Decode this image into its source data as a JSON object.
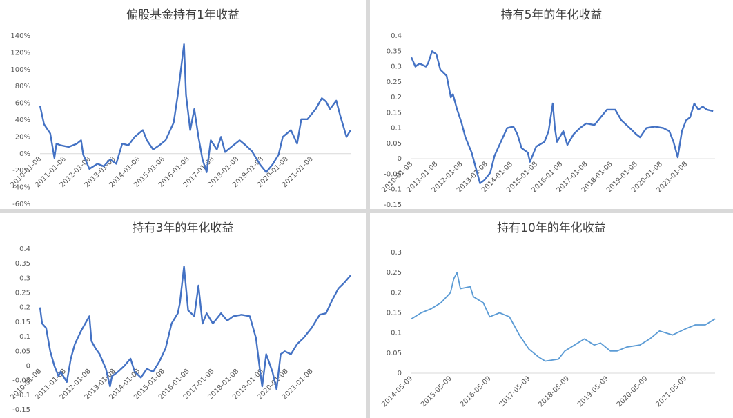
{
  "chart_data": [
    {
      "type": "line",
      "title": "偏股基金持有1年收益",
      "color": "#4472c4",
      "grid": false,
      "ylim": [
        -60,
        140
      ],
      "yticks": [
        {
          "value": -60,
          "label": "-60%"
        },
        {
          "value": -40,
          "label": "-40%"
        },
        {
          "value": -20,
          "label": "-20%"
        },
        {
          "value": 0,
          "label": "0%"
        },
        {
          "value": 20,
          "label": "20%"
        },
        {
          "value": 40,
          "label": "40%"
        },
        {
          "value": 60,
          "label": "60%"
        },
        {
          "value": 80,
          "label": "80%"
        },
        {
          "value": 100,
          "label": "100%"
        },
        {
          "value": 120,
          "label": "120%"
        },
        {
          "value": 140,
          "label": "140%"
        }
      ],
      "xlim": [
        "2010-01-08",
        "2022-08-08"
      ],
      "xticks": [
        "2010-01-08",
        "2011-01-08",
        "2012-01-08",
        "2013-01-08",
        "2014-01-08",
        "2015-01-08",
        "2016-01-08",
        "2017-01-08",
        "2018-01-08",
        "2019-01-08",
        "2020-01-08",
        "2021-01-08"
      ],
      "x": [
        "2010-01-08",
        "2010-03-08",
        "2010-06-08",
        "2010-08-08",
        "2010-09-08",
        "2010-11-08",
        "2011-03-08",
        "2011-07-08",
        "2011-09-08",
        "2011-10-08",
        "2012-01-08",
        "2012-05-08",
        "2012-08-08",
        "2012-11-08",
        "2013-02-08",
        "2013-05-08",
        "2013-08-08",
        "2013-11-08",
        "2014-03-08",
        "2014-05-08",
        "2014-08-08",
        "2014-11-08",
        "2015-02-08",
        "2015-06-08",
        "2015-08-08",
        "2015-11-08",
        "2015-12-08",
        "2016-02-08",
        "2016-04-08",
        "2016-06-08",
        "2016-08-08",
        "2016-10-08",
        "2016-12-08",
        "2017-03-08",
        "2017-05-08",
        "2017-07-08",
        "2017-10-08",
        "2018-02-08",
        "2018-05-08",
        "2018-08-08",
        "2018-12-08",
        "2019-03-08",
        "2019-06-08",
        "2019-09-08",
        "2019-11-08",
        "2020-03-08",
        "2020-06-08",
        "2020-08-08",
        "2020-11-08",
        "2021-03-08",
        "2021-06-08",
        "2021-08-08",
        "2021-10-08",
        "2022-01-08",
        "2022-03-08",
        "2022-06-08",
        "2022-08-08"
      ],
      "values": [
        57,
        35,
        24,
        -5,
        12,
        10,
        8,
        12,
        16,
        -1,
        -18,
        -12,
        -15,
        -7,
        -12,
        12,
        10,
        20,
        28,
        16,
        5,
        10,
        16,
        37,
        70,
        130,
        70,
        28,
        53,
        20,
        -7,
        -22,
        16,
        5,
        20,
        2,
        8,
        16,
        10,
        3,
        -13,
        -22,
        -13,
        -1,
        20,
        28,
        12,
        41,
        41,
        53,
        66,
        62,
        53,
        63,
        45,
        20,
        28
      ]
    },
    {
      "type": "line",
      "title": "持有5年的年化收益",
      "color": "#4472c4",
      "grid": false,
      "ylim": [
        -0.15,
        0.4
      ],
      "yticks": [
        -0.15,
        -0.1,
        -0.05,
        0,
        0.05,
        0.1,
        0.15,
        0.2,
        0.25,
        0.3,
        0.35,
        0.4
      ],
      "xlim": [
        "2010-01-08",
        "2022-03-08"
      ],
      "xticks": [
        "2010-01-08",
        "2011-01-08",
        "2012-01-08",
        "2013-01-08",
        "2014-01-08",
        "2015-01-08",
        "2016-01-08",
        "2017-01-08",
        "2018-01-08",
        "2019-01-08",
        "2020-01-08",
        "2021-01-08"
      ],
      "x": [
        "2010-01-08",
        "2010-03-08",
        "2010-05-08",
        "2010-08-08",
        "2010-09-08",
        "2010-11-08",
        "2011-01-08",
        "2011-03-08",
        "2011-06-08",
        "2011-08-08",
        "2011-09-08",
        "2011-11-08",
        "2012-01-08",
        "2012-03-08",
        "2012-06-08",
        "2012-08-08",
        "2012-10-08",
        "2012-12-08",
        "2013-03-08",
        "2013-05-08",
        "2013-08-08",
        "2013-11-08",
        "2014-02-08",
        "2014-04-08",
        "2014-06-08",
        "2014-09-08",
        "2014-10-08",
        "2015-01-08",
        "2015-05-08",
        "2015-07-08",
        "2015-09-08",
        "2015-10-08",
        "2015-11-08",
        "2016-02-08",
        "2016-04-08",
        "2016-07-08",
        "2016-10-08",
        "2017-01-08",
        "2017-05-08",
        "2017-08-08",
        "2017-11-08",
        "2018-03-08",
        "2018-06-08",
        "2018-10-08",
        "2019-01-08",
        "2019-03-08",
        "2019-06-08",
        "2019-10-08",
        "2020-02-08",
        "2020-05-08",
        "2020-07-08",
        "2020-09-08",
        "2020-11-08",
        "2021-01-08",
        "2021-03-08",
        "2021-05-08",
        "2021-07-08",
        "2021-09-08",
        "2021-11-08",
        "2022-02-08"
      ],
      "values": [
        0.33,
        0.3,
        0.31,
        0.3,
        0.31,
        0.35,
        0.34,
        0.29,
        0.27,
        0.2,
        0.21,
        0.16,
        0.12,
        0.07,
        0.02,
        -0.03,
        -0.08,
        -0.07,
        -0.045,
        0.01,
        0.055,
        0.1,
        0.105,
        0.08,
        0.035,
        0.02,
        -0.01,
        0.04,
        0.055,
        0.09,
        0.18,
        0.1,
        0.055,
        0.09,
        0.045,
        0.08,
        0.1,
        0.115,
        0.11,
        0.135,
        0.16,
        0.16,
        0.125,
        0.1,
        0.08,
        0.07,
        0.1,
        0.105,
        0.1,
        0.09,
        0.055,
        0.005,
        0.09,
        0.125,
        0.135,
        0.18,
        0.16,
        0.17,
        0.16,
        0.155
      ]
    },
    {
      "type": "line",
      "title": "持有3年的年化收益",
      "color": "#4472c4",
      "grid": false,
      "ylim": [
        -0.15,
        0.4
      ],
      "yticks": [
        -0.15,
        -0.1,
        -0.05,
        0,
        0.05,
        0.1,
        0.15,
        0.2,
        0.25,
        0.3,
        0.35,
        0.4
      ],
      "xlim": [
        "2010-01-08",
        "2022-08-08"
      ],
      "xticks": [
        "2010-01-08",
        "2011-01-08",
        "2012-01-08",
        "2013-01-08",
        "2014-01-08",
        "2015-01-08",
        "2016-01-08",
        "2017-01-08",
        "2018-01-08",
        "2019-01-08",
        "2020-01-08",
        "2021-01-08"
      ],
      "x": [
        "2010-01-08",
        "2010-02-08",
        "2010-04-08",
        "2010-06-08",
        "2010-08-08",
        "2010-10-08",
        "2010-11-08",
        "2011-02-08",
        "2011-04-08",
        "2011-06-08",
        "2011-09-08",
        "2011-11-08",
        "2012-01-08",
        "2012-02-08",
        "2012-04-08",
        "2012-06-08",
        "2012-09-08",
        "2012-11-08",
        "2012-12-08",
        "2013-03-08",
        "2013-06-08",
        "2013-09-08",
        "2013-11-08",
        "2014-02-08",
        "2014-05-08",
        "2014-08-08",
        "2014-11-08",
        "2015-02-08",
        "2015-05-08",
        "2015-08-08",
        "2015-09-08",
        "2015-11-08",
        "2016-01-08",
        "2016-04-08",
        "2016-06-08",
        "2016-08-08",
        "2016-10-08",
        "2017-01-08",
        "2017-05-08",
        "2017-08-08",
        "2017-11-08",
        "2018-03-08",
        "2018-07-08",
        "2018-10-08",
        "2018-12-08",
        "2019-01-08",
        "2019-03-08",
        "2019-06-08",
        "2019-08-08",
        "2019-10-08",
        "2019-12-08",
        "2020-03-08",
        "2020-06-08",
        "2020-09-08",
        "2021-01-08",
        "2021-05-08",
        "2021-08-08",
        "2021-11-08",
        "2022-02-08",
        "2022-05-08",
        "2022-08-08"
      ],
      "values": [
        0.2,
        0.145,
        0.13,
        0.05,
        0.0,
        -0.035,
        -0.02,
        -0.055,
        0.025,
        0.075,
        0.12,
        0.145,
        0.17,
        0.085,
        0.06,
        0.04,
        -0.01,
        -0.07,
        -0.035,
        -0.02,
        0.0,
        0.025,
        -0.02,
        -0.04,
        -0.01,
        -0.02,
        0.015,
        0.06,
        0.145,
        0.18,
        0.215,
        0.34,
        0.19,
        0.17,
        0.275,
        0.145,
        0.18,
        0.145,
        0.18,
        0.155,
        0.17,
        0.175,
        0.17,
        0.095,
        -0.02,
        -0.07,
        0.04,
        -0.02,
        -0.08,
        0.04,
        0.05,
        0.04,
        0.075,
        0.095,
        0.13,
        0.175,
        0.18,
        0.225,
        0.265,
        0.285,
        0.31
      ]
    },
    {
      "type": "line",
      "title": "持有10年的年化收益",
      "color": "#5b9bd5",
      "grid": false,
      "ylim": [
        0,
        0.3
      ],
      "yticks": [
        0,
        0.05,
        0.1,
        0.15,
        0.2,
        0.25,
        0.3
      ],
      "xlim": [
        "2014-05-09",
        "2022-02-09"
      ],
      "xticks": [
        "2014-05-09",
        "2015-05-09",
        "2016-05-09",
        "2017-05-09",
        "2018-05-09",
        "2019-05-09",
        "2020-05-09",
        "2021-05-09"
      ],
      "x": [
        "2014-05-09",
        "2014-08-09",
        "2014-11-09",
        "2015-02-09",
        "2015-05-09",
        "2015-06-09",
        "2015-07-09",
        "2015-08-09",
        "2015-11-09",
        "2015-12-09",
        "2016-03-09",
        "2016-05-09",
        "2016-08-09",
        "2016-11-09",
        "2017-02-09",
        "2017-05-09",
        "2017-08-09",
        "2017-10-09",
        "2018-02-09",
        "2018-04-09",
        "2018-07-09",
        "2018-10-09",
        "2019-01-09",
        "2019-03-09",
        "2019-06-09",
        "2019-08-09",
        "2019-11-09",
        "2020-03-09",
        "2020-06-09",
        "2020-09-09",
        "2021-01-09",
        "2021-05-09",
        "2021-08-09",
        "2021-11-09",
        "2022-02-09"
      ],
      "values": [
        0.135,
        0.15,
        0.16,
        0.175,
        0.2,
        0.235,
        0.25,
        0.21,
        0.215,
        0.19,
        0.175,
        0.14,
        0.15,
        0.14,
        0.095,
        0.06,
        0.04,
        0.03,
        0.035,
        0.055,
        0.07,
        0.085,
        0.07,
        0.075,
        0.055,
        0.055,
        0.065,
        0.07,
        0.085,
        0.105,
        0.095,
        0.11,
        0.12,
        0.12,
        0.135
      ]
    }
  ]
}
